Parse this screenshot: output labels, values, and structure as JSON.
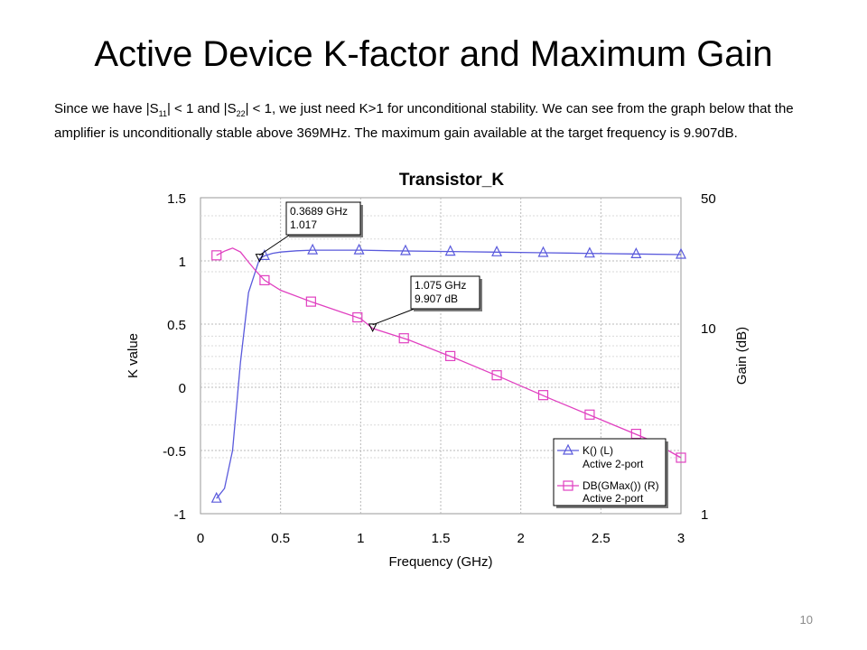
{
  "slide": {
    "title": "Active Device K-factor and Maximum Gain",
    "para": {
      "t1": "Since we have |S",
      "s1": "11",
      "t2": "| < 1 and |S",
      "s2": "22",
      "t3": "| < 1, we just need K>1 for unconditional stability. We can see from the graph below that the amplifier is unconditionally stable above 369MHz. The maximum gain available at the target frequency is 9.907dB."
    },
    "page_number": "10"
  },
  "chart_data": {
    "type": "line",
    "title": "Transistor_K",
    "xlabel": "Frequency (GHz)",
    "ylabel_left": "K value",
    "ylabel_right": "Gain (dB)",
    "xlim": [
      0,
      3
    ],
    "ylim_left": [
      -1,
      1.5
    ],
    "ylim_right_log": [
      1,
      50
    ],
    "xticks": [
      "0",
      "0.5",
      "1",
      "1.5",
      "2",
      "2.5",
      "3"
    ],
    "yticks_left": [
      "1.5",
      "1",
      "0.5",
      "0",
      "-0.5",
      "-1"
    ],
    "yticks_right": [
      "50",
      "10",
      "1"
    ],
    "grid": true,
    "series": [
      {
        "name": "K() (L)",
        "subname": "Active 2-port",
        "axis": "left",
        "color": "#5a5adc",
        "marker": "triangle",
        "x": [
          0.1,
          0.15,
          0.2,
          0.25,
          0.3,
          0.3689,
          0.4,
          0.45,
          0.5,
          0.6,
          0.7,
          0.8,
          1.0,
          1.2,
          1.5,
          1.8,
          2.1,
          2.4,
          2.7,
          3.0
        ],
        "values": [
          -0.88,
          -0.8,
          -0.5,
          0.2,
          0.75,
          1.017,
          1.04,
          1.06,
          1.07,
          1.08,
          1.085,
          1.085,
          1.085,
          1.08,
          1.075,
          1.07,
          1.065,
          1.06,
          1.055,
          1.05
        ],
        "marker_x": [
          0.1,
          0.4,
          0.7,
          0.99,
          1.28,
          1.56,
          1.85,
          2.14,
          2.43,
          2.72,
          3.0
        ]
      },
      {
        "name": "DB(GMax()) (R)",
        "subname": "Active 2-port",
        "axis": "right",
        "color": "#e040c0",
        "marker": "square",
        "x": [
          0.1,
          0.15,
          0.2,
          0.25,
          0.3,
          0.35,
          0.4,
          0.5,
          0.7,
          1.0,
          1.075,
          1.3,
          1.6,
          1.9,
          2.2,
          2.5,
          2.8,
          3.0
        ],
        "values": [
          24.5,
          25.8,
          26.8,
          25.5,
          22.5,
          20.0,
          18.0,
          15.9,
          13.7,
          11.2,
          9.907,
          8.6,
          6.8,
          5.3,
          4.1,
          3.2,
          2.5,
          2.0
        ],
        "marker_x": [
          0.1,
          0.4,
          0.69,
          0.98,
          1.27,
          1.56,
          1.85,
          2.14,
          2.43,
          2.72,
          3.0
        ]
      }
    ],
    "annotations": [
      {
        "line1": "0.3689 GHz",
        "line2": "1.017",
        "x": 0.3689,
        "y": 1.017,
        "axis": "left"
      },
      {
        "line1": "1.075 GHz",
        "line2": "9.907 dB",
        "x": 1.075,
        "y": 9.907,
        "axis": "right"
      }
    ],
    "legend_position": "bottom-right"
  }
}
